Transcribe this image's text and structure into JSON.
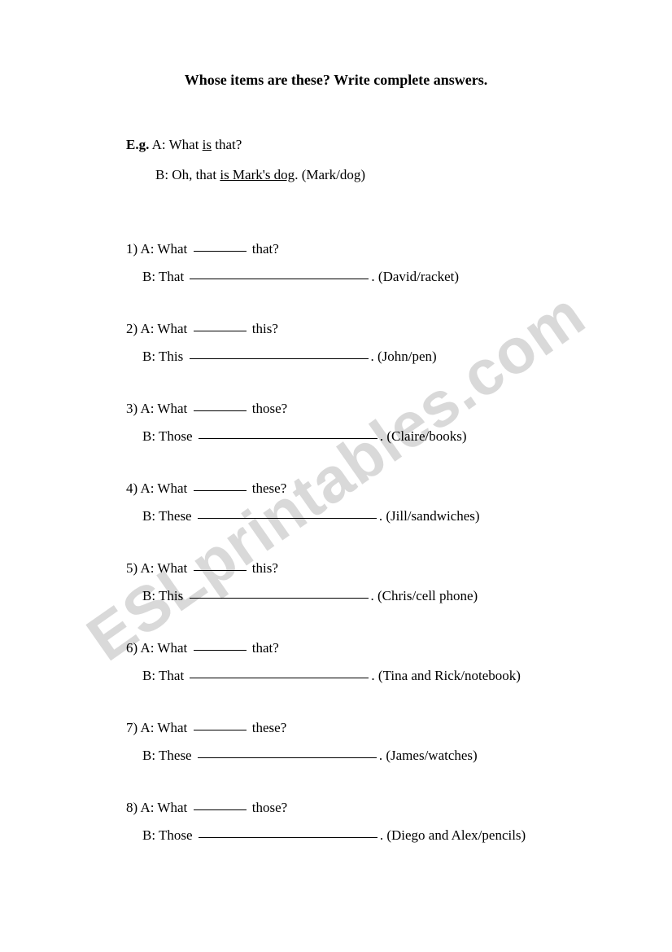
{
  "title": "Whose items are these? Write complete answers.",
  "watermark": "ESLprintables.com",
  "example": {
    "label": "E.g.",
    "a_prefix": "A: What ",
    "a_underlined": "is",
    "a_suffix": " that?",
    "b_prefix": "B: Oh, that ",
    "b_underlined": "is Mark's dog",
    "b_suffix": ". (Mark/dog)"
  },
  "questions": [
    {
      "num": "1)",
      "a_word": "that",
      "b_word": "That",
      "hint": "(David/racket)"
    },
    {
      "num": "2)",
      "a_word": "this",
      "b_word": "This",
      "hint": "(John/pen)"
    },
    {
      "num": "3)",
      "a_word": "those",
      "b_word": "Those",
      "hint": "(Claire/books)"
    },
    {
      "num": "4)",
      "a_word": "these",
      "b_word": "These",
      "hint": "(Jill/sandwiches)"
    },
    {
      "num": "5)",
      "a_word": "this",
      "b_word": "This",
      "hint": "(Chris/cell phone)"
    },
    {
      "num": "6)",
      "a_word": "that",
      "b_word": "That",
      "hint": "(Tina and Rick/notebook)"
    },
    {
      "num": "7)",
      "a_word": "these",
      "b_word": "These",
      "hint": "(James/watches)"
    },
    {
      "num": "8)",
      "a_word": "those",
      "b_word": "Those",
      "hint": "(Diego and Alex/pencils)"
    }
  ],
  "labels": {
    "a_prefix": "A: What ",
    "b_prefix": "B: ",
    "question_mark": "?",
    "period_space": ". "
  }
}
